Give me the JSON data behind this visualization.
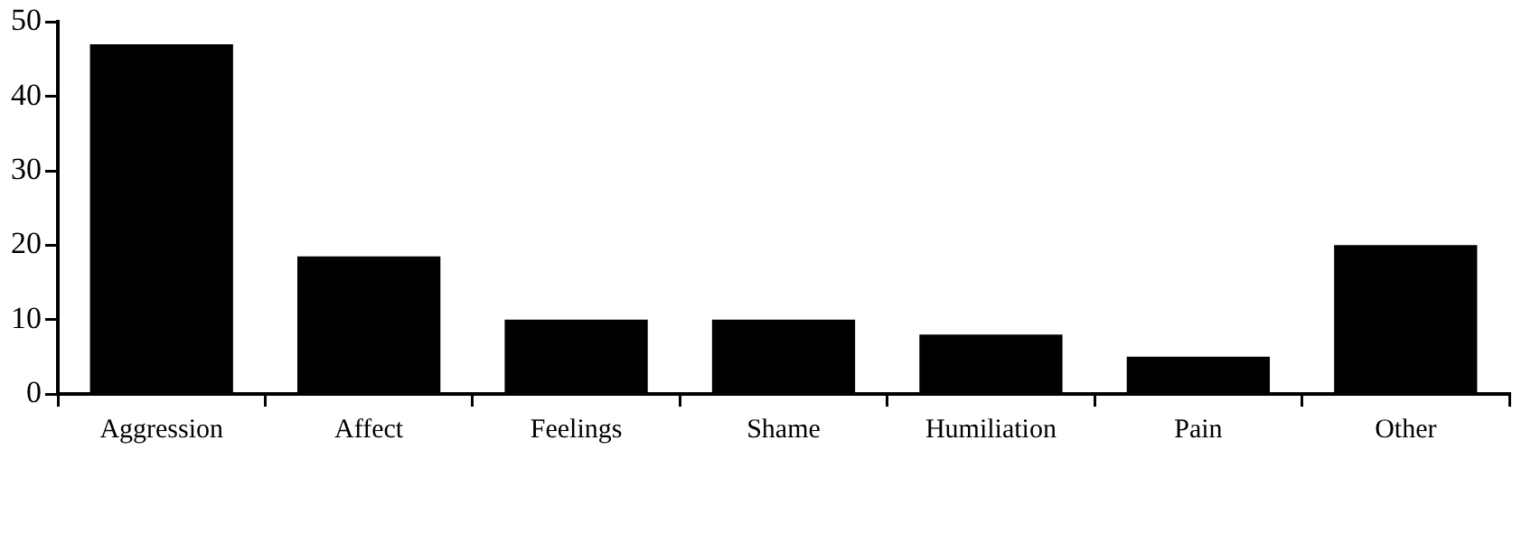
{
  "chart_data": {
    "type": "bar",
    "categories": [
      "Aggression",
      "Affect",
      "Feelings",
      "Shame",
      "Humiliation",
      "Pain",
      "Other"
    ],
    "values": [
      47,
      18.5,
      10,
      10,
      8,
      5,
      20
    ],
    "color": "#000000",
    "ylim": [
      0,
      50
    ],
    "yticks": [
      0,
      10,
      20,
      30,
      40,
      50
    ],
    "grid": false,
    "legend": false
  }
}
